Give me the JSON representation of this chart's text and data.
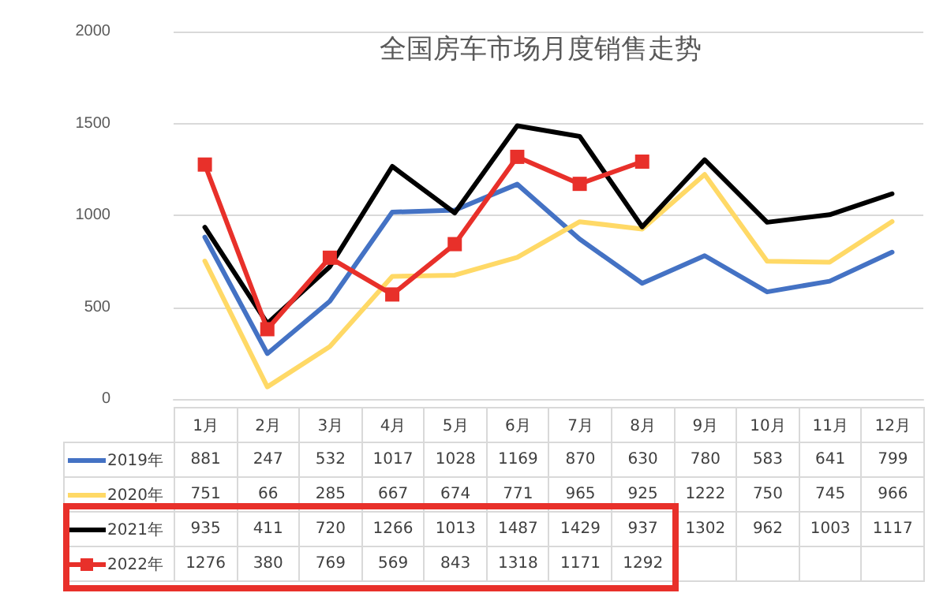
{
  "chart_data": {
    "type": "line",
    "title": "全国房车市场月度销售走势",
    "categories": [
      "1月",
      "2月",
      "3月",
      "4月",
      "5月",
      "6月",
      "7月",
      "8月",
      "9月",
      "10月",
      "11月",
      "12月"
    ],
    "series": [
      {
        "name": "2019年",
        "color": "#4472c4",
        "values": [
          881,
          247,
          532,
          1017,
          1028,
          1169,
          870,
          630,
          780,
          583,
          641,
          799
        ]
      },
      {
        "name": "2020年",
        "color": "#ffd966",
        "values": [
          751,
          66,
          285,
          667,
          674,
          771,
          965,
          925,
          1222,
          750,
          745,
          966
        ]
      },
      {
        "name": "2021年",
        "color": "#000000",
        "values": [
          935,
          411,
          720,
          1266,
          1013,
          1487,
          1429,
          937,
          1302,
          962,
          1003,
          1117
        ]
      },
      {
        "name": "2022年",
        "color": "#e8302a",
        "marker": "square",
        "values": [
          1276,
          380,
          769,
          569,
          843,
          1318,
          1171,
          1292,
          null,
          null,
          null,
          null
        ]
      }
    ],
    "ylim": [
      0,
      2000
    ],
    "yticks": [
      0,
      500,
      {
        "value": 1000,
        "label": "1000"
      },
      {
        "value": 1500,
        "label": "1500"
      },
      {
        "value": 2000,
        "label": "2000"
      }
    ],
    "grid": "y",
    "legend": "bottom",
    "data_labels": true,
    "marker": "none",
    "tick_labels": "y"
  }
}
